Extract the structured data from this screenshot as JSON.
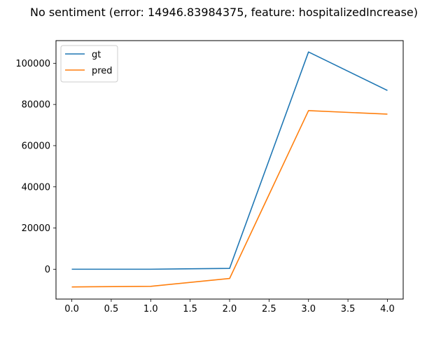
{
  "chart_data": {
    "type": "line",
    "title": "No sentiment (error: 14946.83984375, feature: hospitalizedIncrease)",
    "xlabel": "",
    "ylabel": "",
    "x": [
      0,
      1,
      2,
      3,
      4
    ],
    "xlim": [
      -0.2,
      4.2
    ],
    "ylim": [
      -14500,
      111000
    ],
    "x_ticks": [
      0.0,
      0.5,
      1.0,
      1.5,
      2.0,
      2.5,
      3.0,
      3.5,
      4.0
    ],
    "x_tick_labels": [
      "0.0",
      "0.5",
      "1.0",
      "1.5",
      "2.0",
      "2.5",
      "3.0",
      "3.5",
      "4.0"
    ],
    "y_ticks": [
      0,
      20000,
      40000,
      60000,
      80000,
      100000
    ],
    "y_tick_labels": [
      "0",
      "20000",
      "40000",
      "60000",
      "80000",
      "100000"
    ],
    "grid": false,
    "legend_position": "top-left",
    "series": [
      {
        "name": "gt",
        "color": "#1f77b4",
        "values": [
          0,
          0,
          400,
          105500,
          86800
        ]
      },
      {
        "name": "pred",
        "color": "#ff7f0e",
        "values": [
          -8600,
          -8300,
          -4500,
          77000,
          75300
        ]
      }
    ]
  }
}
